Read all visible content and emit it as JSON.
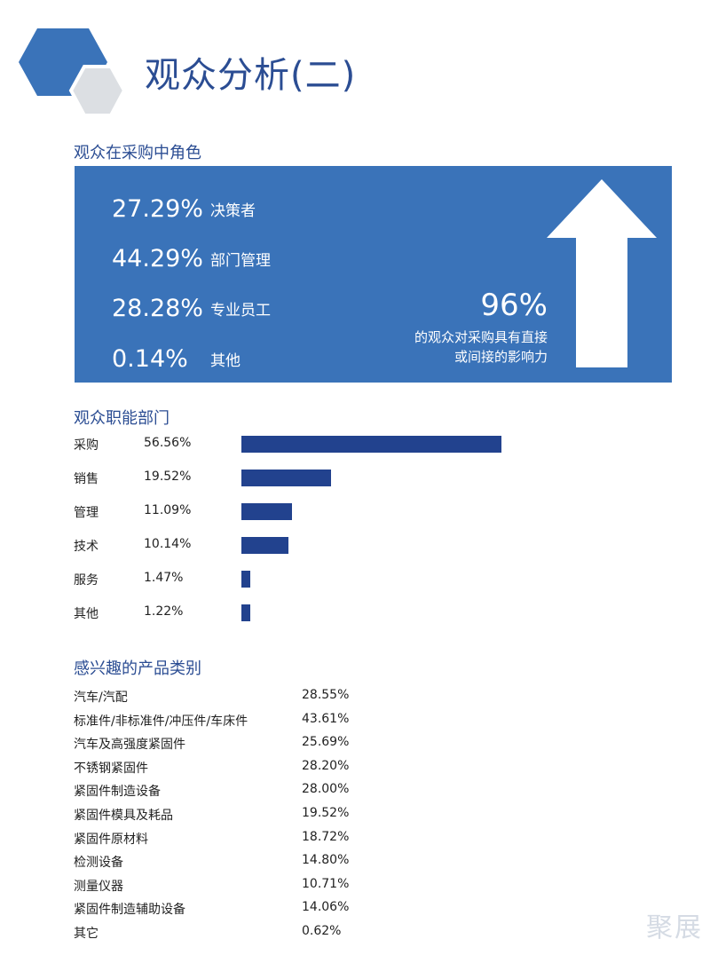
{
  "header": {
    "title": "观众分析(二)"
  },
  "roles": {
    "section_title": "观众在采购中角色",
    "items": [
      {
        "percent": "27.29%",
        "label": "决策者"
      },
      {
        "percent": "44.29%",
        "label": "部门管理"
      },
      {
        "percent": "28.28%",
        "label": "专业员工"
      },
      {
        "percent": "0.14%",
        "label": "其他"
      }
    ],
    "influence_percent": "96%",
    "influence_line1": "的观众对采购具有直接",
    "influence_line2": "或间接的影响力"
  },
  "departments": {
    "section_title": "观众职能部门",
    "items": [
      {
        "name": "采购",
        "percent_label": "56.56%"
      },
      {
        "name": "销售",
        "percent_label": "19.52%"
      },
      {
        "name": "管理",
        "percent_label": "11.09%"
      },
      {
        "name": "技术",
        "percent_label": "10.14%"
      },
      {
        "name": "服务",
        "percent_label": "1.47%"
      },
      {
        "name": "其他",
        "percent_label": "1.22%"
      }
    ]
  },
  "chart_data": {
    "type": "bar",
    "orientation": "horizontal",
    "categories": [
      "采购",
      "销售",
      "管理",
      "技术",
      "服务",
      "其他"
    ],
    "values": [
      56.56,
      19.52,
      11.09,
      10.14,
      1.47,
      1.22
    ],
    "title": "观众职能部门",
    "xlabel": "",
    "ylabel": "",
    "grid": false,
    "bar_color": "#22428e"
  },
  "products": {
    "section_title": "感兴趣的产品类别",
    "items": [
      {
        "name": "汽车/汽配",
        "percent": "28.55%"
      },
      {
        "name": "标准件/非标准件/冲压件/车床件",
        "percent": "43.61%"
      },
      {
        "name": "汽车及高强度紧固件",
        "percent": "25.69%"
      },
      {
        "name": "不锈钢紧固件",
        "percent": "28.20%"
      },
      {
        "name": "紧固件制造设备",
        "percent": "28.00%"
      },
      {
        "name": "紧固件模具及耗品",
        "percent": "19.52%"
      },
      {
        "name": "紧固件原材料",
        "percent": "18.72%"
      },
      {
        "name": "检测设备",
        "percent": "14.80%"
      },
      {
        "name": "测量仪器",
        "percent": "10.71%"
      },
      {
        "name": "紧固件制造辅助设备",
        "percent": "14.06%"
      },
      {
        "name": "其它",
        "percent": "0.62%"
      }
    ]
  },
  "watermark": "聚展",
  "colors": {
    "accent_blue": "#3a73b9",
    "dark_blue": "#2b4d93",
    "bar_blue": "#22428e",
    "hex_gray": "#dcdfe3"
  }
}
